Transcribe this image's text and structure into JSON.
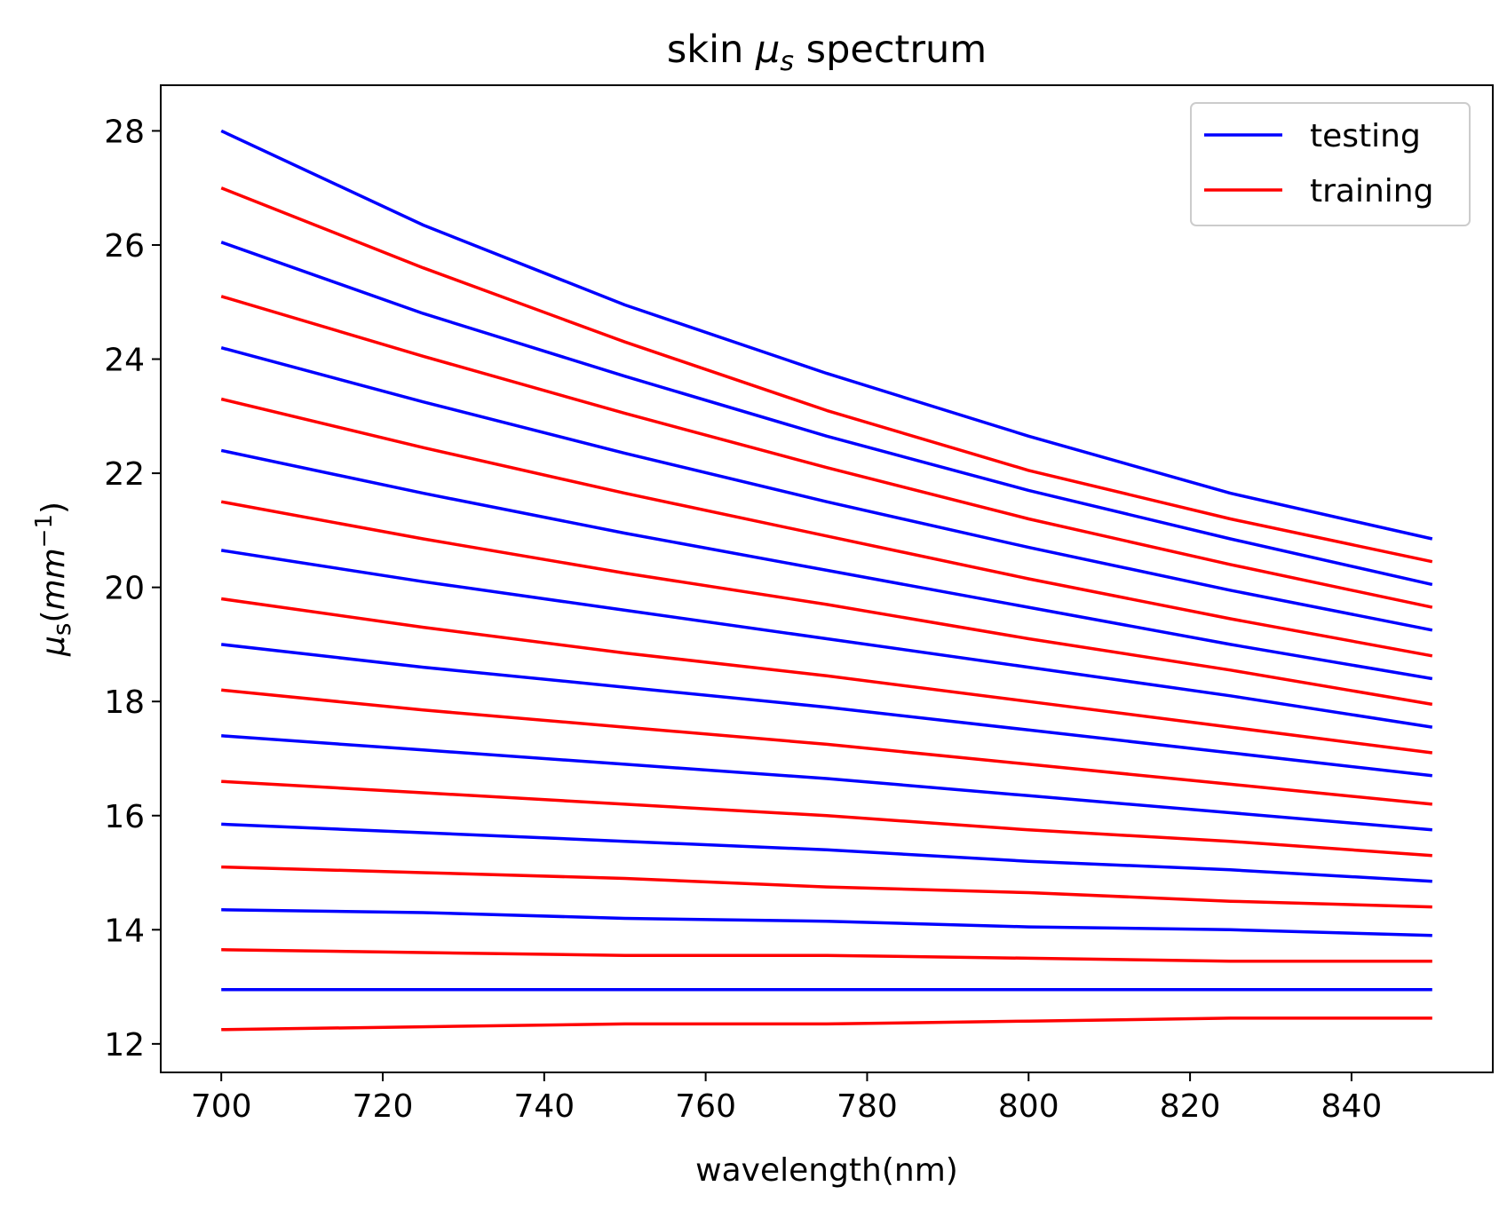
{
  "chart_data": {
    "type": "line",
    "title": {
      "prefix": "skin ",
      "symbol": "μ",
      "subscript": "s",
      "suffix": " spectrum"
    },
    "xlabel": "wavelength(nm)",
    "ylabel": {
      "symbol": "μ",
      "subscript": "s",
      "open": "(",
      "unit": "mm",
      "superscript": "−1",
      "close": ")"
    },
    "xlim": [
      692.5,
      857.5
    ],
    "ylim": [
      11.5,
      28.8
    ],
    "xticks": [
      700,
      720,
      740,
      760,
      780,
      800,
      820,
      840
    ],
    "yticks": [
      12,
      14,
      16,
      18,
      20,
      22,
      24,
      26,
      28
    ],
    "x": [
      700,
      725,
      750,
      775,
      800,
      825,
      850
    ],
    "legend": {
      "position": "upper right",
      "entries": [
        {
          "label": "testing",
          "color": "#0000ff"
        },
        {
          "label": "training",
          "color": "#ff0000"
        }
      ]
    },
    "grid": false,
    "series": [
      {
        "group": "testing",
        "color": "#0000ff",
        "values": [
          28.0,
          26.35,
          24.95,
          23.75,
          22.65,
          21.65,
          20.85
        ]
      },
      {
        "group": "training",
        "color": "#ff0000",
        "values": [
          27.0,
          25.6,
          24.3,
          23.1,
          22.05,
          21.2,
          20.45
        ]
      },
      {
        "group": "testing",
        "color": "#0000ff",
        "values": [
          26.05,
          24.8,
          23.7,
          22.65,
          21.7,
          20.85,
          20.05
        ]
      },
      {
        "group": "training",
        "color": "#ff0000",
        "values": [
          25.1,
          24.05,
          23.05,
          22.1,
          21.2,
          20.4,
          19.65
        ]
      },
      {
        "group": "testing",
        "color": "#0000ff",
        "values": [
          24.2,
          23.25,
          22.35,
          21.5,
          20.7,
          19.95,
          19.25
        ]
      },
      {
        "group": "training",
        "color": "#ff0000",
        "values": [
          23.3,
          22.45,
          21.65,
          20.9,
          20.15,
          19.45,
          18.8
        ]
      },
      {
        "group": "testing",
        "color": "#0000ff",
        "values": [
          22.4,
          21.65,
          20.95,
          20.3,
          19.65,
          19.0,
          18.4
        ]
      },
      {
        "group": "training",
        "color": "#ff0000",
        "values": [
          21.5,
          20.85,
          20.25,
          19.7,
          19.1,
          18.55,
          17.95
        ]
      },
      {
        "group": "testing",
        "color": "#0000ff",
        "values": [
          20.65,
          20.1,
          19.6,
          19.1,
          18.6,
          18.1,
          17.55
        ]
      },
      {
        "group": "training",
        "color": "#ff0000",
        "values": [
          19.8,
          19.3,
          18.85,
          18.45,
          18.0,
          17.55,
          17.1
        ]
      },
      {
        "group": "testing",
        "color": "#0000ff",
        "values": [
          19.0,
          18.6,
          18.25,
          17.9,
          17.5,
          17.1,
          16.7
        ]
      },
      {
        "group": "training",
        "color": "#ff0000",
        "values": [
          18.2,
          17.85,
          17.55,
          17.25,
          16.9,
          16.55,
          16.2
        ]
      },
      {
        "group": "testing",
        "color": "#0000ff",
        "values": [
          17.4,
          17.15,
          16.9,
          16.65,
          16.35,
          16.05,
          15.75
        ]
      },
      {
        "group": "training",
        "color": "#ff0000",
        "values": [
          16.6,
          16.4,
          16.2,
          16.0,
          15.75,
          15.55,
          15.3
        ]
      },
      {
        "group": "testing",
        "color": "#0000ff",
        "values": [
          15.85,
          15.7,
          15.55,
          15.4,
          15.2,
          15.05,
          14.85
        ]
      },
      {
        "group": "training",
        "color": "#ff0000",
        "values": [
          15.1,
          15.0,
          14.9,
          14.75,
          14.65,
          14.5,
          14.4
        ]
      },
      {
        "group": "testing",
        "color": "#0000ff",
        "values": [
          14.35,
          14.3,
          14.2,
          14.15,
          14.05,
          14.0,
          13.9
        ]
      },
      {
        "group": "training",
        "color": "#ff0000",
        "values": [
          13.65,
          13.6,
          13.55,
          13.55,
          13.5,
          13.45,
          13.45
        ]
      },
      {
        "group": "testing",
        "color": "#0000ff",
        "values": [
          12.95,
          12.95,
          12.95,
          12.95,
          12.95,
          12.95,
          12.95
        ]
      },
      {
        "group": "training",
        "color": "#ff0000",
        "values": [
          12.25,
          12.3,
          12.35,
          12.35,
          12.4,
          12.45,
          12.45
        ]
      }
    ]
  }
}
